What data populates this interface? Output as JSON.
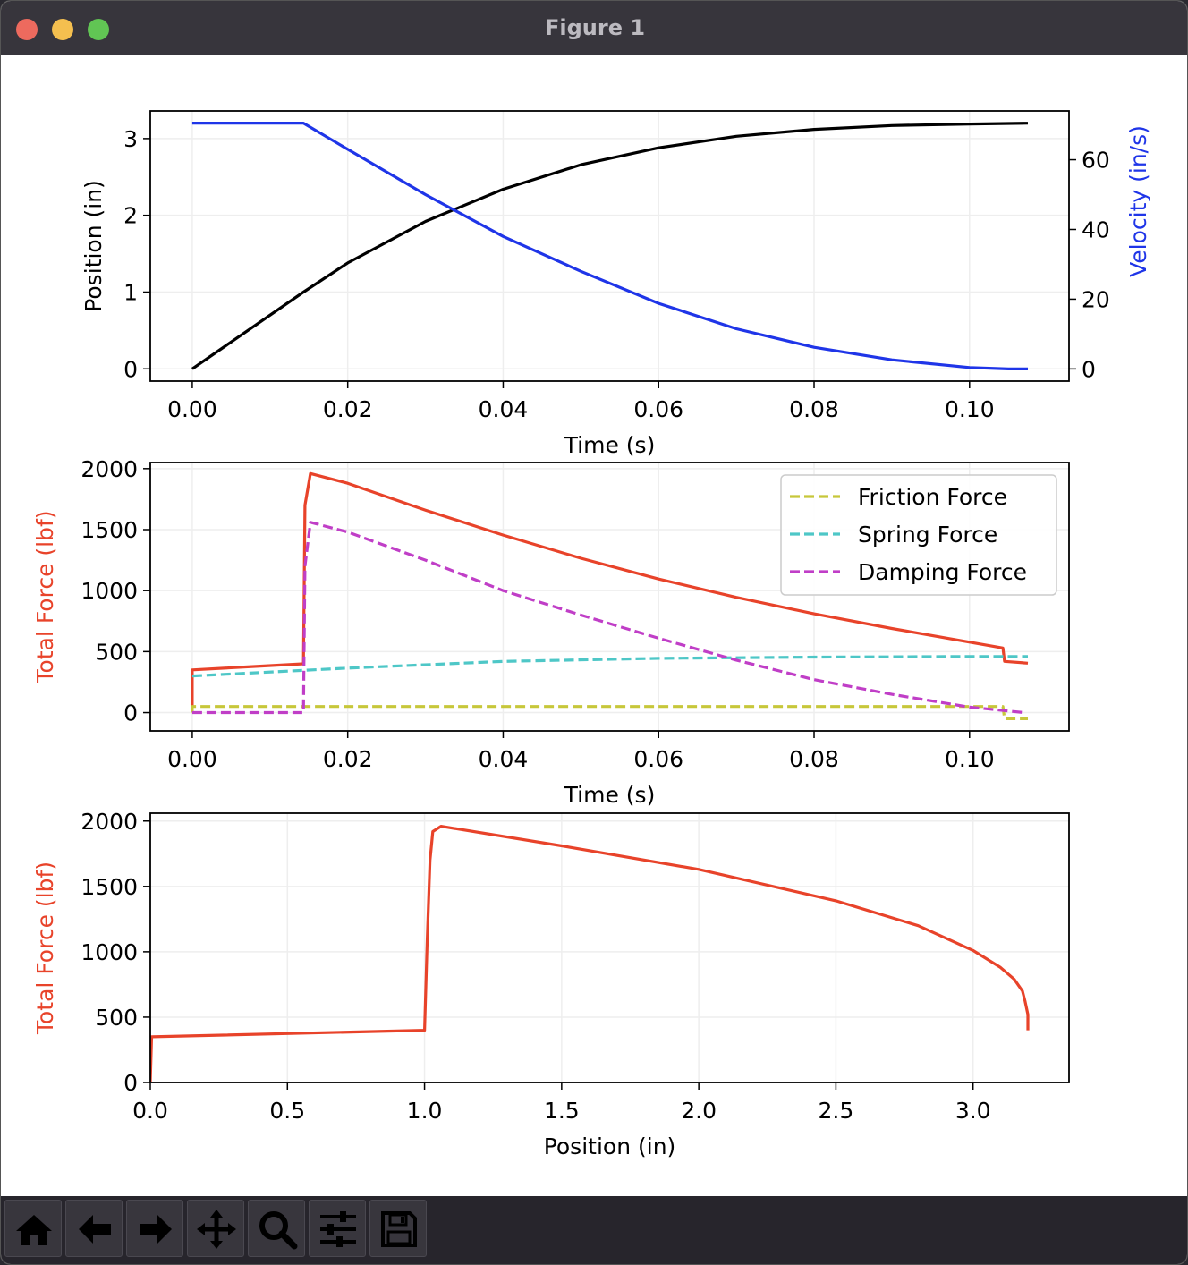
{
  "window": {
    "title": "Figure 1"
  },
  "toolbar": {
    "buttons": [
      {
        "name": "home",
        "icon": "home-icon"
      },
      {
        "name": "back",
        "icon": "arrow-left-icon"
      },
      {
        "name": "forward",
        "icon": "arrow-right-icon"
      },
      {
        "name": "pan",
        "icon": "move-icon"
      },
      {
        "name": "zoom",
        "icon": "magnifier-icon"
      },
      {
        "name": "configure",
        "icon": "sliders-icon"
      },
      {
        "name": "save",
        "icon": "floppy-icon"
      }
    ]
  },
  "chart_data": [
    {
      "type": "line",
      "xlabel": "Time (s)",
      "ylabel": "Position (in)",
      "y2label": "Velocity (in/s)",
      "xlim": [
        -0.0054,
        0.1128
      ],
      "ylim": [
        -0.16,
        3.36
      ],
      "y2lim": [
        -3.5,
        74
      ],
      "xticks": [
        "0.00",
        "0.02",
        "0.04",
        "0.06",
        "0.08",
        "0.10"
      ],
      "yticks": [
        "0",
        "1",
        "2",
        "3"
      ],
      "y2ticks": [
        "0",
        "20",
        "40",
        "60"
      ],
      "grid": true,
      "series": [
        {
          "axis": "left",
          "color": "#000000",
          "style": "solid",
          "x": [
            0,
            0.0143,
            0.02,
            0.03,
            0.04,
            0.05,
            0.06,
            0.07,
            0.08,
            0.09,
            0.1,
            0.1075
          ],
          "y": [
            0,
            1.0,
            1.38,
            1.92,
            2.34,
            2.66,
            2.88,
            3.03,
            3.12,
            3.17,
            3.19,
            3.2
          ]
        },
        {
          "axis": "right",
          "color": "#1f35e8",
          "style": "solid",
          "x": [
            0,
            0.0143,
            0.02,
            0.03,
            0.04,
            0.05,
            0.06,
            0.07,
            0.08,
            0.09,
            0.1,
            0.105,
            0.1075
          ],
          "y": [
            70.5,
            70.5,
            63,
            50,
            38,
            28,
            18.8,
            11.5,
            6.2,
            2.6,
            0.4,
            0,
            0
          ]
        }
      ]
    },
    {
      "type": "line",
      "xlabel": "Time (s)",
      "ylabel": "Total Force (lbf)",
      "xlim": [
        -0.0054,
        0.1128
      ],
      "ylim": [
        -150,
        2050
      ],
      "xticks": [
        "0.00",
        "0.02",
        "0.04",
        "0.06",
        "0.08",
        "0.10"
      ],
      "yticks": [
        "0",
        "500",
        "1000",
        "1500",
        "2000"
      ],
      "grid": true,
      "legend": "top-right",
      "series": [
        {
          "name": "",
          "color": "#e8432a",
          "style": "solid",
          "x": [
            0,
            0,
            0.0143,
            0.0145,
            0.0152,
            0.02,
            0.03,
            0.04,
            0.05,
            0.06,
            0.07,
            0.08,
            0.09,
            0.1043,
            0.1045,
            0.1075
          ],
          "y": [
            0,
            350,
            400,
            1700,
            1960,
            1880,
            1660,
            1455,
            1265,
            1095,
            945,
            810,
            690,
            530,
            420,
            405
          ]
        },
        {
          "name": "Friction Force",
          "color": "#c7c73a",
          "style": "dashed",
          "x": [
            0,
            0,
            0.1043,
            0.1045,
            0.1075
          ],
          "y": [
            0,
            50,
            50,
            -50,
            -50
          ]
        },
        {
          "name": "Spring Force",
          "color": "#4ec7c7",
          "style": "dashed",
          "x": [
            0,
            0.02,
            0.04,
            0.06,
            0.08,
            0.1,
            0.1075
          ],
          "y": [
            300,
            365,
            420,
            445,
            455,
            460,
            460
          ]
        },
        {
          "name": "Damping Force",
          "color": "#c03ec7",
          "style": "dashed",
          "x": [
            0,
            0.0143,
            0.0145,
            0.0152,
            0.02,
            0.03,
            0.04,
            0.05,
            0.06,
            0.07,
            0.08,
            0.09,
            0.1,
            0.107
          ],
          "y": [
            0,
            0,
            1200,
            1560,
            1480,
            1250,
            1000,
            800,
            610,
            430,
            270,
            150,
            45,
            0
          ]
        }
      ]
    },
    {
      "type": "line",
      "xlabel": "Position (in)",
      "ylabel": "Total Force (lbf)",
      "xlim": [
        0,
        3.35
      ],
      "ylim": [
        0,
        2060
      ],
      "xticks": [
        "0.0",
        "0.5",
        "1.0",
        "1.5",
        "2.0",
        "2.5",
        "3.0"
      ],
      "yticks": [
        "0",
        "500",
        "1000",
        "1500",
        "2000"
      ],
      "grid": true,
      "series": [
        {
          "name": "",
          "color": "#e8432a",
          "style": "solid",
          "x": [
            0,
            0.005,
            1.0,
            1.01,
            1.02,
            1.03,
            1.06,
            1.5,
            2.0,
            2.5,
            2.8,
            3.0,
            3.1,
            3.15,
            3.18,
            3.19,
            3.2,
            3.2
          ],
          "y": [
            0,
            350,
            400,
            1100,
            1700,
            1920,
            1960,
            1810,
            1630,
            1390,
            1200,
            1010,
            880,
            790,
            700,
            620,
            520,
            400
          ]
        }
      ]
    }
  ]
}
